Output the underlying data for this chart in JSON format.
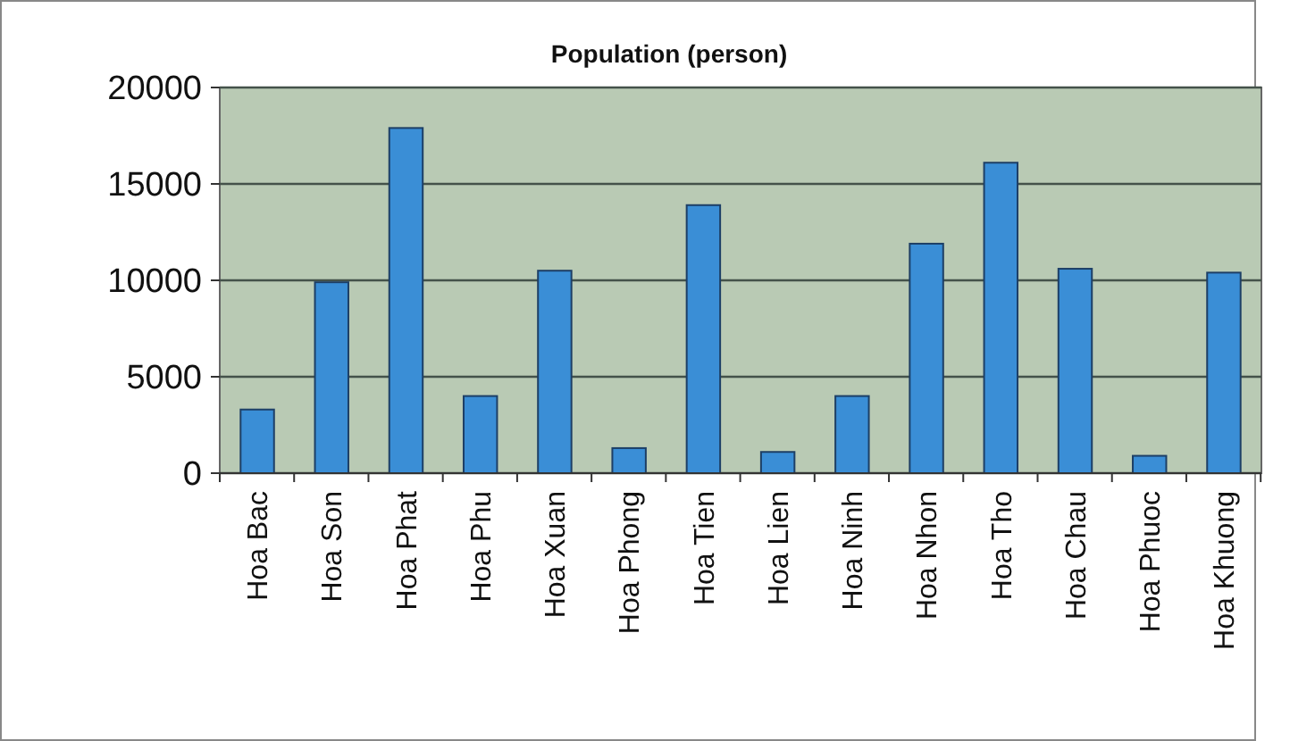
{
  "chart_data": {
    "type": "bar",
    "title": "Population (person)",
    "categories": [
      "Hoa Bac",
      "Hoa Son",
      "Hoa Phat",
      "Hoa Phu",
      "Hoa Xuan",
      "Hoa Phong",
      "Hoa Tien",
      "Hoa Lien",
      "Hoa Ninh",
      "Hoa Nhon",
      "Hoa Tho",
      "Hoa Chau",
      "Hoa Phuoc",
      "Hoa Khuong"
    ],
    "values": [
      3300,
      9900,
      17900,
      4000,
      10500,
      1300,
      13900,
      1100,
      4000,
      11900,
      16100,
      10600,
      900,
      10400
    ],
    "color": "#3a8ed6",
    "ylim": [
      0,
      20000
    ],
    "yticks": [
      0,
      5000,
      10000,
      15000,
      20000
    ],
    "grid": "y"
  }
}
